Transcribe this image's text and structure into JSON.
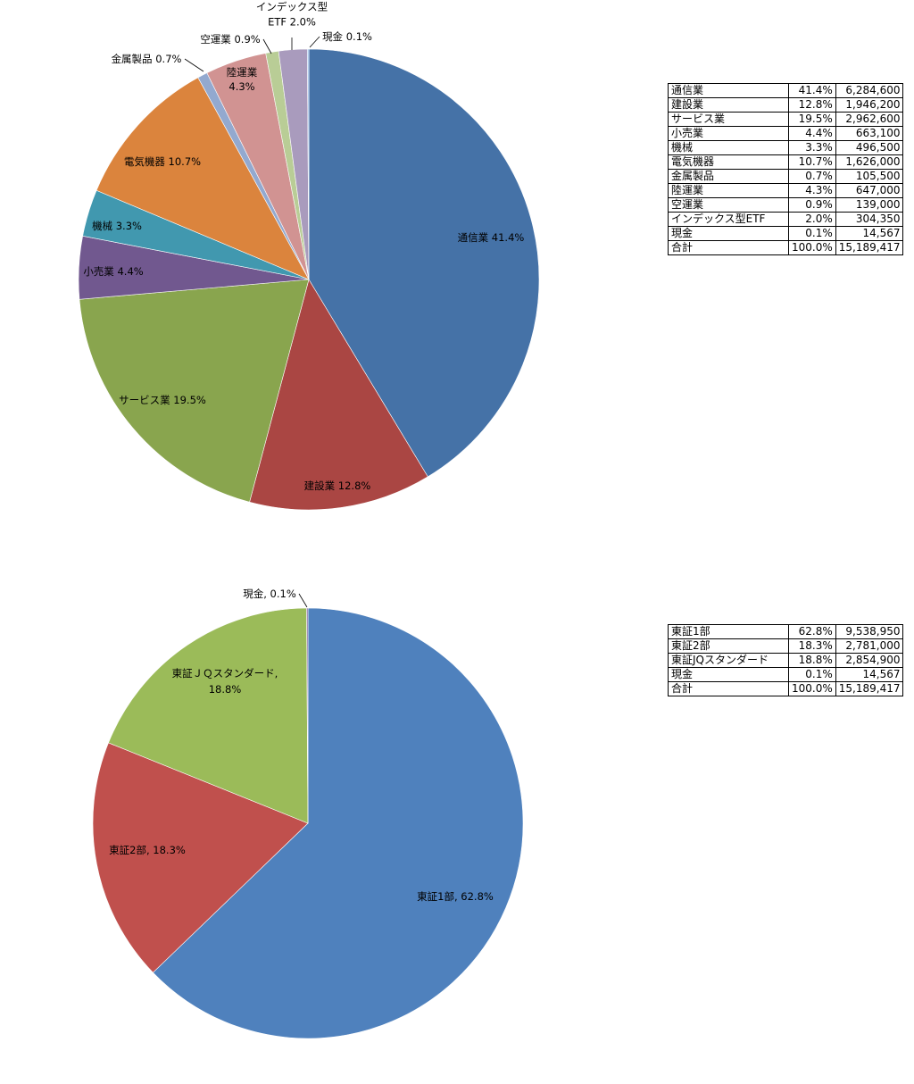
{
  "chart_data": [
    {
      "type": "pie",
      "start": "top",
      "direction": "clockwise",
      "categories": [
        "通信業",
        "建設業",
        "サービス業",
        "小売業",
        "機械",
        "電気機器",
        "金属製品",
        "陸運業",
        "空運業",
        "インデックス型ETF",
        "現金"
      ],
      "values": [
        41.4,
        12.8,
        19.5,
        4.4,
        3.3,
        10.7,
        0.7,
        4.3,
        0.9,
        2.0,
        0.1
      ],
      "colors": [
        "#4572a7",
        "#aa4643",
        "#89a54e",
        "#71588f",
        "#4198af",
        "#db843d",
        "#93a9cf",
        "#d19392",
        "#b9cd96",
        "#a99bbd",
        "#8eb4e3"
      ],
      "labels": [
        {
          "lines": [
            "通信業 41.4%"
          ]
        },
        {
          "lines": [
            "建設業 12.8%"
          ]
        },
        {
          "lines": [
            "サービス業 19.5%"
          ]
        },
        {
          "lines": [
            "小売業 4.4%"
          ]
        },
        {
          "lines": [
            "機械 3.3%"
          ]
        },
        {
          "lines": [
            "電気機器 10.7%"
          ]
        },
        {
          "lines": [
            "金属製品 0.7%"
          ]
        },
        {
          "lines": [
            "陸運業",
            "4.3%"
          ]
        },
        {
          "lines": [
            "空運業 0.9%"
          ]
        },
        {
          "lines": [
            "インデックス型",
            "ETF 2.0%"
          ]
        },
        {
          "lines": [
            "現金 0.1%"
          ]
        }
      ]
    },
    {
      "type": "pie",
      "start": "top",
      "direction": "clockwise",
      "categories": [
        "東証1部",
        "東証2部",
        "東証ＪＱスタンダード",
        "現金"
      ],
      "values": [
        62.8,
        18.3,
        18.8,
        0.1
      ],
      "colors": [
        "#4f81bd",
        "#c0504d",
        "#9bbb59",
        "#8064a2"
      ],
      "labels": [
        {
          "lines": [
            "東証1部, 62.8%"
          ]
        },
        {
          "lines": [
            "東証2部, 18.3%"
          ]
        },
        {
          "lines": [
            "東証ＪＱスタンダード,",
            "18.8%"
          ]
        },
        {
          "lines": [
            "現金, 0.1%"
          ]
        }
      ]
    }
  ],
  "tables": [
    {
      "rows": [
        [
          "通信業",
          "41.4%",
          "6,284,600"
        ],
        [
          "建設業",
          "12.8%",
          "1,946,200"
        ],
        [
          "サービス業",
          "19.5%",
          "2,962,600"
        ],
        [
          "小売業",
          "4.4%",
          "663,100"
        ],
        [
          "機械",
          "3.3%",
          "496,500"
        ],
        [
          "電気機器",
          "10.7%",
          "1,626,000"
        ],
        [
          "金属製品",
          "0.7%",
          "105,500"
        ],
        [
          "陸運業",
          "4.3%",
          "647,000"
        ],
        [
          "空運業",
          "0.9%",
          "139,000"
        ],
        [
          "インデックス型ETF",
          "2.0%",
          "304,350"
        ],
        [
          "現金",
          "0.1%",
          "14,567"
        ],
        [
          "合計",
          "100.0%",
          "15,189,417"
        ]
      ]
    },
    {
      "rows": [
        [
          "東証1部",
          "62.8%",
          "9,538,950"
        ],
        [
          "東証2部",
          "18.3%",
          "2,781,000"
        ],
        [
          "東証JQスタンダード",
          "18.8%",
          "2,854,900"
        ],
        [
          "現金",
          "0.1%",
          "14,567"
        ],
        [
          "合計",
          "100.0%",
          "15,189,417"
        ]
      ]
    }
  ]
}
